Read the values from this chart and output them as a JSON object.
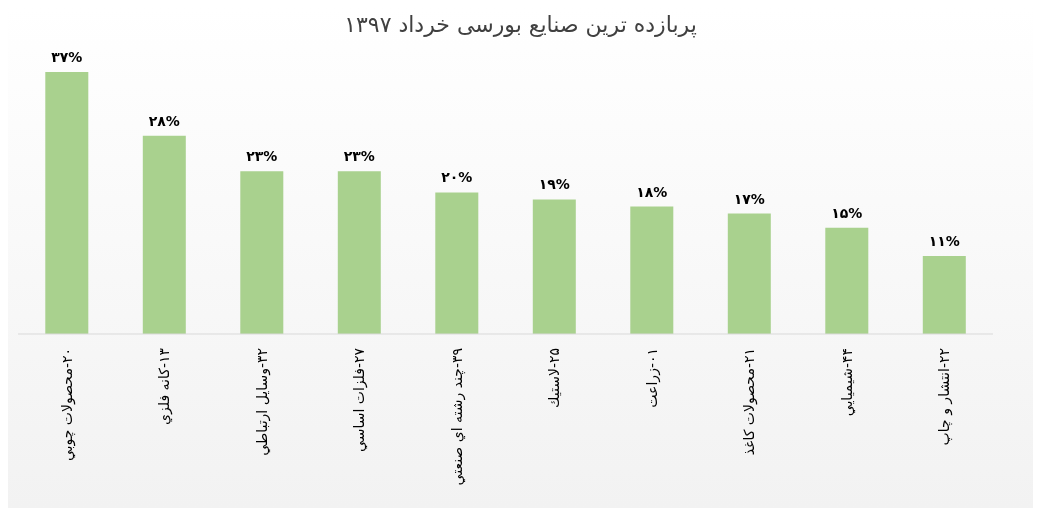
{
  "chart_data": {
    "type": "bar",
    "title": "پربازده ترین صنایع بورسی خرداد ۱۳۹۷",
    "categories": [
      "۲۰-محصولات چوبي",
      "۱۳-كانه فلزي",
      "۳۲-وسايل ارتباطي",
      "۲۷-فلزات اساسي",
      "۳۹-چند رشته اي صنعتي",
      "۲۵-لاستيك",
      "۰۱-زراعت",
      "۲۱-محصولات كاغذ",
      "۴۴-شيميايي",
      "۲۲-انتشار و چاپ"
    ],
    "values": [
      37,
      28,
      23,
      23,
      20,
      19,
      18,
      17,
      15,
      11
    ],
    "value_labels": [
      "۳۷%",
      "۲۸%",
      "۲۳%",
      "۲۳%",
      "۲۰%",
      "۱۹%",
      "۱۸%",
      "۱۷%",
      "۱۵%",
      "۱۱%"
    ],
    "color": "#a9d18e",
    "grid": false,
    "legend": false
  }
}
